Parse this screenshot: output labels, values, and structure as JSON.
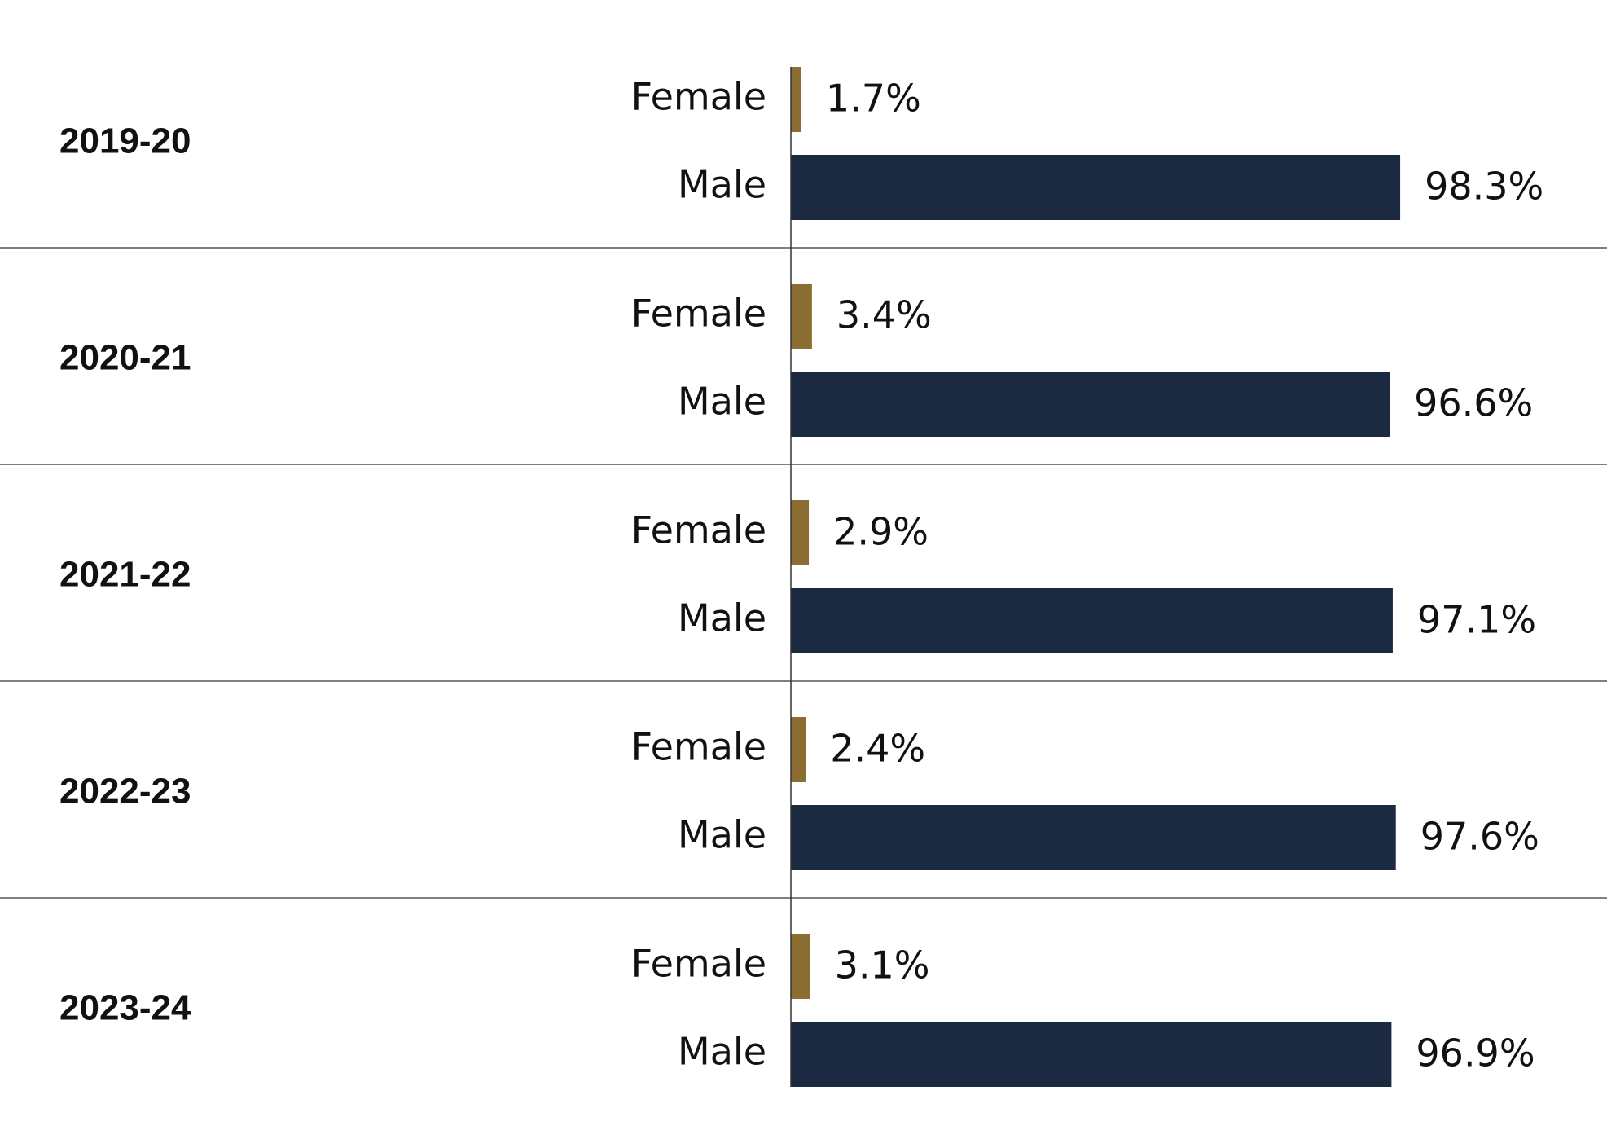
{
  "chart_data": {
    "type": "bar",
    "orientation": "horizontal",
    "categories": [
      "2019-20",
      "2020-21",
      "2021-22",
      "2022-23",
      "2023-24"
    ],
    "series": [
      {
        "name": "Female",
        "color": "#8c6d31",
        "values": [
          1.7,
          3.4,
          2.9,
          2.4,
          3.1
        ],
        "value_labels": [
          "1.7%",
          "3.4%",
          "2.9%",
          "2.4%",
          "3.1%"
        ]
      },
      {
        "name": "Male",
        "color": "#1b2941",
        "values": [
          98.3,
          96.6,
          97.1,
          97.6,
          96.9
        ],
        "value_labels": [
          "98.3%",
          "96.6%",
          "97.1%",
          "97.6%",
          "96.9%"
        ]
      }
    ],
    "xlim": [
      0,
      100
    ]
  }
}
